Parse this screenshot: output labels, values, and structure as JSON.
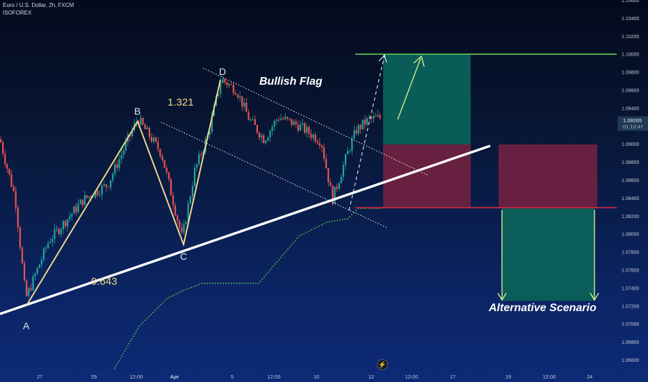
{
  "header": {
    "title_line": "Euro / U.S. Dollar, 2h, FXCM",
    "author": "ISOFOREX"
  },
  "chart_data": {
    "type": "candlestick",
    "instrument": "Euro / U.S. Dollar",
    "timeframe": "2h",
    "source": "FXCM",
    "price_axis": {
      "range": [
        1.0654,
        1.1068
      ],
      "ticks": [
        "1.10600",
        "1.10400",
        "1.10200",
        "1.10000",
        "1.09800",
        "1.09600",
        "1.09400",
        "1.09200",
        "1.09000",
        "1.08800",
        "1.08600",
        "1.08400",
        "1.08200",
        "1.08000",
        "1.07800",
        "1.07600",
        "1.07400",
        "1.07200",
        "1.07000",
        "1.06800",
        "1.06600"
      ]
    },
    "time_axis_labels": [
      "27",
      "29",
      "12:00",
      "Apr",
      "5",
      "12:00",
      "10",
      "12",
      "12:00",
      "17",
      "19",
      "12:00",
      "24"
    ],
    "current_price": {
      "value": "1.09265",
      "countdown": "01:10:47"
    },
    "pattern_points": [
      {
        "label": "A",
        "price": 1.0722
      },
      {
        "label": "B",
        "price": 1.0928
      },
      {
        "label": "C",
        "price": 1.079
      },
      {
        "label": "D",
        "price": 1.0972
      }
    ],
    "ratios": [
      "0.643",
      "1.321"
    ],
    "annotations": {
      "flag": "Bullish Flag",
      "alt": "Alternative Scenario"
    },
    "levels": {
      "target": 1.1,
      "entry_zone_top": 1.09,
      "support": 1.0831,
      "alt_target": 1.0728
    },
    "colors": {
      "bull": "#26a69a",
      "bear": "#ef5350",
      "pattern": "#f0d78c",
      "target_line": "#4caf50",
      "trend_line": "#ffffff",
      "dots": "#4caf50",
      "green_box": "#0b5d5a",
      "red_box": "#6e2140",
      "arrow": "#c8e68a"
    }
  }
}
